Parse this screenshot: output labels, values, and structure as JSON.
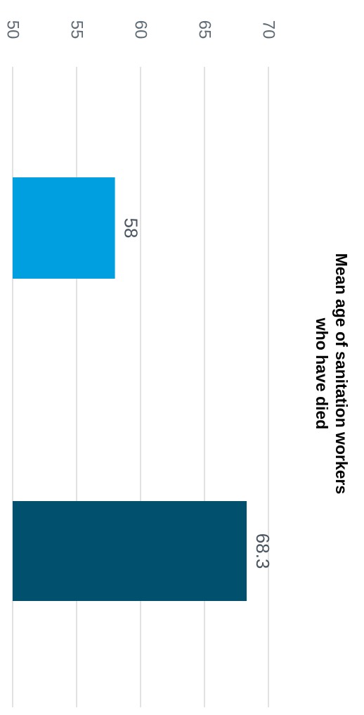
{
  "chart_data": {
    "type": "bar",
    "orientation": "horizontal",
    "title_lines": [
      "Mean age of sanitation workers",
      "who have died"
    ],
    "categories": [
      "",
      ""
    ],
    "values": [
      58,
      68.3
    ],
    "value_labels": [
      "58",
      "68.3"
    ],
    "bar_colors": [
      "#00a0e0",
      "#00506e"
    ],
    "xlim": [
      50,
      70
    ],
    "x_ticks": [
      50,
      55,
      60,
      65,
      70
    ],
    "x_tick_labels": [
      "50",
      "55",
      "60",
      "65",
      "70"
    ],
    "grid": true,
    "legend": "none"
  }
}
